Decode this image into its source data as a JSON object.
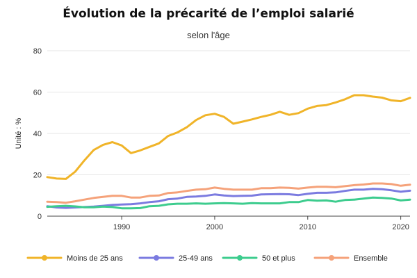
{
  "chart_data": {
    "type": "line",
    "title": "Évolution de la précarité de l’emploi salarié",
    "subtitle": "selon l'âge",
    "xlabel": "",
    "ylabel": "Unité : %",
    "xlim": [
      1982,
      2021
    ],
    "ylim": [
      0,
      80
    ],
    "yticks": [
      0,
      20,
      40,
      60,
      80
    ],
    "xticks": [
      1990,
      2000,
      2010,
      2020
    ],
    "grid": true,
    "legend_position": "bottom",
    "x": [
      1982,
      1983,
      1984,
      1985,
      1986,
      1987,
      1988,
      1989,
      1990,
      1991,
      1992,
      1993,
      1994,
      1995,
      1996,
      1997,
      1998,
      1999,
      2000,
      2001,
      2002,
      2003,
      2004,
      2005,
      2006,
      2007,
      2008,
      2009,
      2010,
      2011,
      2012,
      2013,
      2014,
      2015,
      2016,
      2017,
      2018,
      2019,
      2020,
      2021
    ],
    "series": [
      {
        "name": "Moins de 25 ans",
        "color": "#f0b429",
        "values": [
          18.9,
          18.2,
          18.0,
          21.5,
          27.0,
          32.0,
          34.5,
          35.8,
          34.2,
          30.5,
          31.8,
          33.5,
          35.2,
          38.8,
          40.5,
          43.0,
          46.5,
          48.8,
          49.5,
          48.0,
          44.7,
          45.7,
          46.8,
          48.0,
          49.0,
          50.5,
          49.0,
          49.8,
          52.0,
          53.3,
          53.7,
          55.0,
          56.5,
          58.5,
          58.5,
          57.8,
          57.3,
          56.0,
          55.6,
          57.2
        ]
      },
      {
        "name": "25-49 ans",
        "color": "#7b7be0",
        "values": [
          4.8,
          4.2,
          4.0,
          4.2,
          4.4,
          4.6,
          5.0,
          5.4,
          5.6,
          5.8,
          6.2,
          6.8,
          7.2,
          8.2,
          8.5,
          9.3,
          9.5,
          9.8,
          10.5,
          10.0,
          9.7,
          9.8,
          9.9,
          10.5,
          10.6,
          10.7,
          10.6,
          10.2,
          10.8,
          11.3,
          11.3,
          11.5,
          12.2,
          12.8,
          12.8,
          13.2,
          13.0,
          12.5,
          11.8,
          12.3
        ]
      },
      {
        "name": "50 et plus",
        "color": "#3dcc8e",
        "values": [
          4.5,
          4.8,
          5.0,
          4.7,
          4.3,
          4.3,
          4.6,
          4.4,
          3.8,
          3.8,
          3.9,
          4.8,
          5.0,
          5.7,
          6.0,
          6.0,
          6.2,
          6.0,
          6.2,
          6.3,
          6.2,
          6.0,
          6.3,
          6.2,
          6.2,
          6.2,
          6.8,
          6.8,
          7.8,
          7.5,
          7.6,
          7.0,
          7.8,
          8.0,
          8.5,
          9.0,
          8.8,
          8.5,
          7.6,
          8.0
        ]
      },
      {
        "name": "Ensemble",
        "color": "#f5a27a",
        "values": [
          7.0,
          6.8,
          6.5,
          7.2,
          8.0,
          8.8,
          9.3,
          9.8,
          9.8,
          9.0,
          9.0,
          9.8,
          10.0,
          11.2,
          11.5,
          12.2,
          12.8,
          13.0,
          13.8,
          13.2,
          12.8,
          12.8,
          12.8,
          13.5,
          13.5,
          13.8,
          13.7,
          13.3,
          13.8,
          14.2,
          14.2,
          14.0,
          14.5,
          15.0,
          15.3,
          15.8,
          15.8,
          15.5,
          14.7,
          15.2
        ]
      }
    ]
  }
}
